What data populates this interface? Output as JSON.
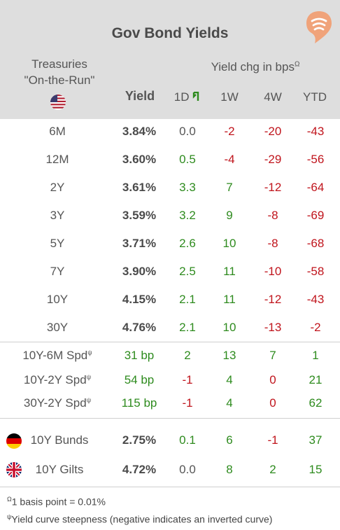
{
  "title": "Gov Bond Yields",
  "treasuries_label_line1": "Treasuries",
  "treasuries_label_line2": "\"On-the-Run\"",
  "yield_header": "Yield",
  "change_header": "Yield chg in bps",
  "change_header_mark": "Ω",
  "columns": [
    "1D",
    "1W",
    "4W",
    "YTD"
  ],
  "treasury_rows": [
    {
      "label": "6M",
      "yield": "3.84%",
      "d1": "0.0",
      "w1": "-2",
      "w4": "-20",
      "ytd": "-43"
    },
    {
      "label": "12M",
      "yield": "3.60%",
      "d1": "0.5",
      "w1": "-4",
      "w4": "-29",
      "ytd": "-56"
    },
    {
      "label": "2Y",
      "yield": "3.61%",
      "d1": "3.3",
      "w1": "7",
      "w4": "-12",
      "ytd": "-64"
    },
    {
      "label": "3Y",
      "yield": "3.59%",
      "d1": "3.2",
      "w1": "9",
      "w4": "-8",
      "ytd": "-69"
    },
    {
      "label": "5Y",
      "yield": "3.71%",
      "d1": "2.6",
      "w1": "10",
      "w4": "-8",
      "ytd": "-68"
    },
    {
      "label": "7Y",
      "yield": "3.90%",
      "d1": "2.5",
      "w1": "11",
      "w4": "-10",
      "ytd": "-58"
    },
    {
      "label": "10Y",
      "yield": "4.15%",
      "d1": "2.1",
      "w1": "11",
      "w4": "-12",
      "ytd": "-43"
    },
    {
      "label": "30Y",
      "yield": "4.76%",
      "d1": "2.1",
      "w1": "10",
      "w4": "-13",
      "ytd": "-2"
    }
  ],
  "spread_mark": "ψ",
  "spread_rows": [
    {
      "label": "10Y-6M Spd",
      "yield": "31 bp",
      "d1": "2",
      "w1": "13",
      "w4": "7",
      "ytd": "1"
    },
    {
      "label": "10Y-2Y Spd",
      "yield": "54 bp",
      "d1": "-1",
      "w1": "4",
      "w4": "0",
      "ytd": "21"
    },
    {
      "label": "30Y-2Y Spd",
      "yield": "115 bp",
      "d1": "-1",
      "w1": "4",
      "w4": "0",
      "ytd": "62"
    }
  ],
  "foreign_rows": [
    {
      "label": "10Y Bunds",
      "yield": "2.75%",
      "d1": "0.1",
      "w1": "6",
      "w4": "-1",
      "ytd": "37",
      "flag": "germany-flag"
    },
    {
      "label": "10Y Gilts",
      "yield": "4.72%",
      "d1": "0.0",
      "w1": "8",
      "w4": "2",
      "ytd": "15",
      "flag": "uk-flag"
    }
  ],
  "footnote_omega_mark": "Ω",
  "footnote_omega": "1 basis point = 0.01%",
  "footnote_psi_mark": "ψ",
  "footnote_psi": "Yield curve steepness (negative indicates an inverted curve)",
  "colors": {
    "header_bg": "#dedede",
    "positive": "#2e8b1e",
    "negative": "#c0141c",
    "logo": "#f0a37a"
  }
}
